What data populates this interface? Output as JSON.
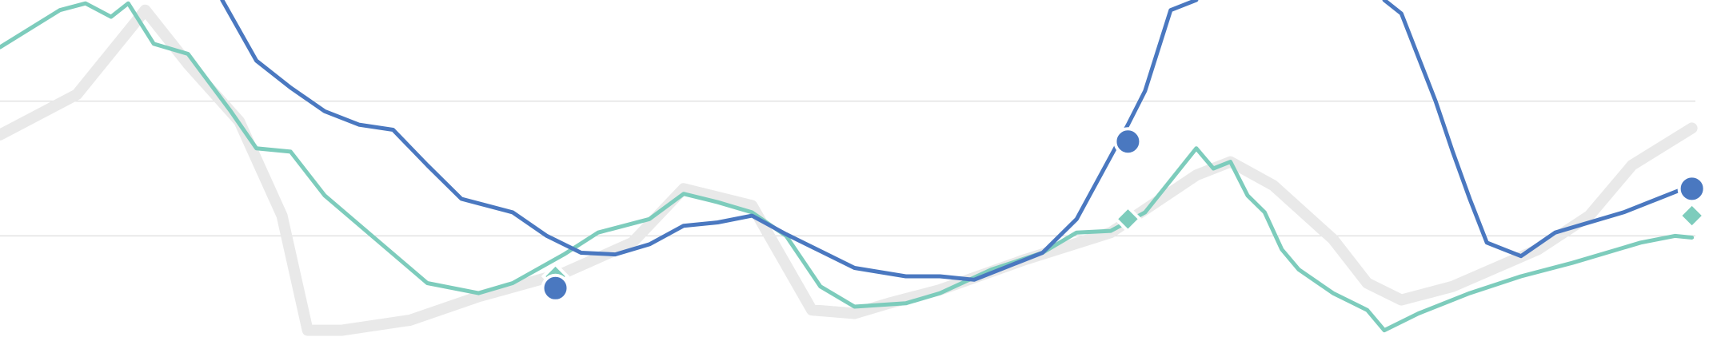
{
  "chart_data": {
    "type": "line",
    "title": "",
    "xlabel": "",
    "ylabel": "",
    "grid": true,
    "xlim": [
      0,
      100
    ],
    "ylim": [
      0,
      100
    ],
    "gridlines_y": [
      70,
      30
    ],
    "colors": {
      "background": "#ffffff",
      "grid": "#e2e2e2",
      "series_blue": "#4a78c0",
      "series_teal": "#7dccbc",
      "series_gray": "#e9e9e9"
    },
    "series": [
      {
        "color": "#e9e9e9",
        "stroke": "gray",
        "points": [
          [
            0,
            60
          ],
          [
            4.5,
            72
          ],
          [
            8.5,
            97
          ],
          [
            11,
            81
          ],
          [
            14,
            64
          ],
          [
            16.5,
            36
          ],
          [
            18,
            2
          ],
          [
            20,
            2
          ],
          [
            24,
            5
          ],
          [
            28,
            12
          ],
          [
            33,
            19
          ],
          [
            37,
            28
          ],
          [
            40,
            44
          ],
          [
            44,
            39
          ],
          [
            47.5,
            8
          ],
          [
            50,
            7
          ],
          [
            52,
            10
          ],
          [
            55,
            14
          ],
          [
            60,
            23
          ],
          [
            65,
            31
          ],
          [
            70,
            48
          ],
          [
            72,
            52
          ],
          [
            74.5,
            45
          ],
          [
            78,
            29
          ],
          [
            80,
            16
          ],
          [
            82,
            11
          ],
          [
            85,
            15
          ],
          [
            90,
            26
          ],
          [
            93,
            36
          ],
          [
            95.5,
            51
          ],
          [
            99,
            62
          ]
        ]
      },
      {
        "color": "#7dccbc",
        "stroke": "teal",
        "marker": "diamond",
        "points": [
          [
            0,
            86
          ],
          [
            3.5,
            97
          ],
          [
            5,
            99
          ],
          [
            6.5,
            95
          ],
          [
            7.5,
            99
          ],
          [
            9,
            87
          ],
          [
            11,
            84
          ],
          [
            13.5,
            67
          ],
          [
            15,
            56
          ],
          [
            17,
            55
          ],
          [
            19,
            42
          ],
          [
            22,
            29
          ],
          [
            25,
            16
          ],
          [
            28,
            13
          ],
          [
            30,
            16
          ],
          [
            33,
            24.5
          ],
          [
            35,
            31
          ],
          [
            38,
            35
          ],
          [
            40,
            42.5
          ],
          [
            42,
            40
          ],
          [
            44,
            37
          ],
          [
            46,
            30
          ],
          [
            48,
            15
          ],
          [
            50,
            9
          ],
          [
            53,
            10
          ],
          [
            55,
            13
          ],
          [
            58,
            20
          ],
          [
            61,
            25
          ],
          [
            63,
            31
          ],
          [
            65,
            31.5
          ],
          [
            67,
            37
          ],
          [
            70,
            56
          ],
          [
            71,
            50
          ],
          [
            72,
            52
          ],
          [
            73,
            42
          ],
          [
            74,
            37
          ],
          [
            75,
            26
          ],
          [
            76,
            20
          ],
          [
            78,
            13
          ],
          [
            80,
            8
          ],
          [
            81,
            2
          ],
          [
            83,
            7
          ],
          [
            86,
            13
          ],
          [
            89,
            18
          ],
          [
            92,
            22
          ],
          [
            94,
            25
          ],
          [
            96,
            28
          ],
          [
            98,
            30
          ],
          [
            99,
            29.5
          ]
        ]
      },
      {
        "color": "#4a78c0",
        "stroke": "blue",
        "marker": "circle",
        "points": [
          [
            13,
            100
          ],
          [
            15,
            82
          ],
          [
            17,
            74
          ],
          [
            19,
            67
          ],
          [
            21,
            63
          ],
          [
            23,
            61.5
          ],
          [
            25,
            51
          ],
          [
            27,
            41
          ],
          [
            30,
            37
          ],
          [
            32,
            30
          ],
          [
            34,
            25
          ],
          [
            36,
            24.5
          ],
          [
            38,
            27.5
          ],
          [
            40,
            33
          ],
          [
            42,
            34
          ],
          [
            44,
            36
          ],
          [
            46,
            30.5
          ],
          [
            48,
            25.5
          ],
          [
            50,
            20.5
          ],
          [
            53,
            18
          ],
          [
            55,
            18
          ],
          [
            57,
            17
          ],
          [
            59,
            21
          ],
          [
            61,
            25
          ],
          [
            63,
            35
          ],
          [
            66,
            63
          ],
          [
            67,
            73
          ],
          [
            68.5,
            97
          ],
          [
            70,
            100
          ]
        ],
        "points_segment_2": [
          [
            81,
            100
          ],
          [
            82,
            96
          ],
          [
            84,
            70
          ],
          [
            85,
            55
          ],
          [
            86,
            41
          ],
          [
            87,
            28
          ],
          [
            88,
            26
          ],
          [
            89,
            24
          ],
          [
            91,
            31
          ],
          [
            93,
            34
          ],
          [
            95,
            37
          ],
          [
            97,
            41
          ],
          [
            99,
            45
          ]
        ]
      }
    ],
    "markers": [
      {
        "series": "teal",
        "shape": "diamond",
        "x": 32.5,
        "y": 18
      },
      {
        "series": "blue",
        "shape": "circle",
        "x": 32.5,
        "y": 14.5
      },
      {
        "series": "blue",
        "shape": "circle",
        "x": 66,
        "y": 58
      },
      {
        "series": "teal",
        "shape": "diamond",
        "x": 66,
        "y": 35
      },
      {
        "series": "blue",
        "shape": "circle",
        "x": 99,
        "y": 44
      },
      {
        "series": "teal",
        "shape": "diamond",
        "x": 99,
        "y": 36
      }
    ]
  }
}
